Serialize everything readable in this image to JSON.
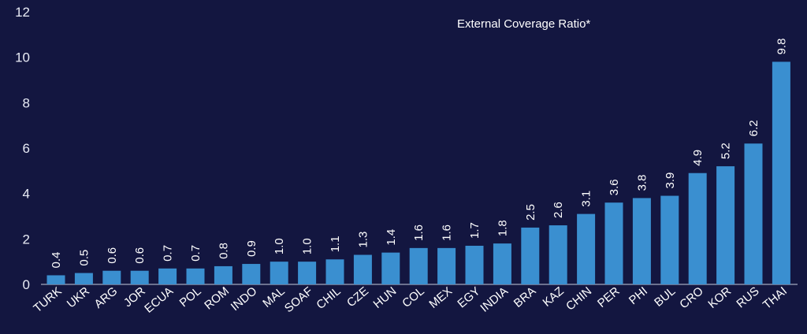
{
  "chart_data": {
    "type": "bar",
    "title": "External Coverage Ratio*",
    "xlabel": "",
    "ylabel": "",
    "ylim": [
      0,
      12
    ],
    "yticks": [
      "0",
      "2",
      "4",
      "6",
      "8",
      "10",
      "12"
    ],
    "grid": false,
    "legend": "none",
    "categories": [
      "TURK",
      "UKR",
      "ARG",
      "JOR",
      "ECUA",
      "POL",
      "ROM",
      "INDO",
      "MAL",
      "SOAF",
      "CHIL",
      "CZE",
      "HUN",
      "COL",
      "MEX",
      "EGY",
      "INDIA",
      "BRA",
      "KAZ",
      "CHIN",
      "PER",
      "PHI",
      "BUL",
      "CRO",
      "KOR",
      "RUS",
      "THAI"
    ],
    "values": [
      0.4,
      0.5,
      0.6,
      0.6,
      0.7,
      0.7,
      0.8,
      0.9,
      1.0,
      1.0,
      1.1,
      1.3,
      1.4,
      1.6,
      1.6,
      1.7,
      1.8,
      2.5,
      2.6,
      3.1,
      3.6,
      3.8,
      3.9,
      4.9,
      5.2,
      6.2,
      9.8
    ],
    "value_labels": [
      "0.4",
      "0.5",
      "0.6",
      "0.6",
      "0.7",
      "0.7",
      "0.8",
      "0.9",
      "1.0",
      "1.0",
      "1.1",
      "1.3",
      "1.4",
      "1.6",
      "1.6",
      "1.7",
      "1.8",
      "2.5",
      "2.6",
      "3.1",
      "3.6",
      "3.8",
      "3.9",
      "4.9",
      "5.2",
      "6.2",
      "9.8"
    ],
    "colors": {
      "background": "#131640",
      "bar": "#3a8fd0",
      "axis": "#8a8fa8",
      "text": "#ffffff"
    }
  }
}
